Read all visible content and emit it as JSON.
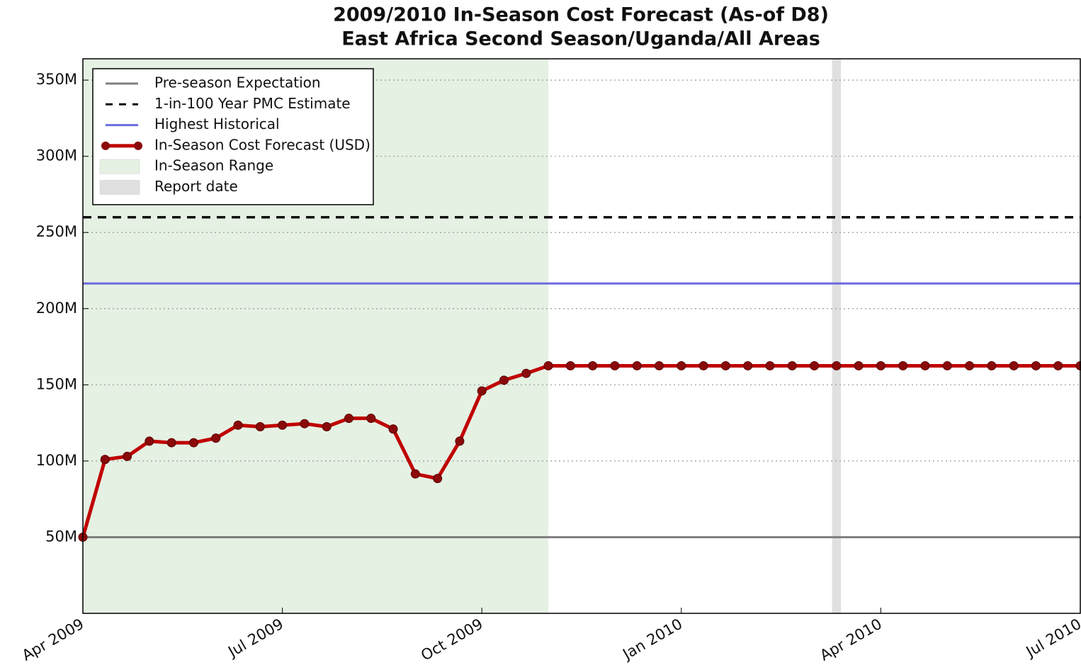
{
  "chart_data": {
    "type": "line",
    "title": "2009/2010 In-Season Cost Forecast (As-of D8)",
    "subtitle": "East Africa Second Season/Uganda/All Areas",
    "x": [
      0,
      1,
      2,
      3,
      4,
      5,
      6,
      7,
      8,
      9,
      10,
      11,
      12,
      13,
      14,
      15,
      16,
      17,
      18,
      19,
      20,
      21,
      22,
      23,
      24,
      25,
      26,
      27,
      28,
      29,
      30,
      31,
      32,
      33,
      34,
      35,
      36,
      37,
      38,
      39,
      40,
      41,
      42,
      43,
      44,
      45
    ],
    "xlim": [
      0,
      45
    ],
    "xticks": [
      {
        "value": 0,
        "label": "Apr 2009"
      },
      {
        "value": 9,
        "label": "Jul 2009"
      },
      {
        "value": 18,
        "label": "Oct 2009"
      },
      {
        "value": 27,
        "label": "Jan 2010"
      },
      {
        "value": 36,
        "label": "Apr 2010"
      },
      {
        "value": 45,
        "label": "Jul 2010"
      }
    ],
    "ylim": [
      0,
      364000000
    ],
    "yticks": [
      {
        "value": 50000000,
        "label": "50M"
      },
      {
        "value": 100000000,
        "label": "100M"
      },
      {
        "value": 150000000,
        "label": "150M"
      },
      {
        "value": 200000000,
        "label": "200M"
      },
      {
        "value": 250000000,
        "label": "250M"
      },
      {
        "value": 300000000,
        "label": "300M"
      },
      {
        "value": 350000000,
        "label": "350M"
      }
    ],
    "grid": true,
    "legend": "upper left",
    "reference_lines": [
      {
        "name": "Pre-season Expectation",
        "value": 50000000,
        "color": "#808080",
        "style": "solid"
      },
      {
        "name": "1-in-100 Year PMC Estimate",
        "value": 260000000,
        "color": "#111111",
        "style": "dashed"
      },
      {
        "name": "Highest Historical",
        "value": 216500000,
        "color": "#6b6be0",
        "style": "solid"
      }
    ],
    "series": [
      {
        "name": "In-Season Cost Forecast (USD)",
        "color": "#c00000",
        "values": [
          50000000,
          101000000,
          103000000,
          113000000,
          112000000,
          112000000,
          115000000,
          123500000,
          122500000,
          123500000,
          124500000,
          122500000,
          128000000,
          128000000,
          121000000,
          91500000,
          88500000,
          113000000,
          146000000,
          153000000,
          157500000,
          162500000,
          162500000,
          162500000,
          162500000,
          162500000,
          162500000,
          162500000,
          162500000,
          162500000,
          162500000,
          162500000,
          162500000,
          162500000,
          162500000,
          162500000,
          162500000,
          162500000,
          162500000,
          162500000,
          162500000,
          162500000,
          162500000,
          162500000,
          162500000,
          162500000
        ]
      }
    ],
    "spans": [
      {
        "name": "In-Season Range",
        "x": [
          0,
          21
        ],
        "color": "#e5f1e3"
      },
      {
        "name": "Report date",
        "x": [
          33.8,
          34.2
        ],
        "color": "#e0e0e0"
      }
    ]
  }
}
